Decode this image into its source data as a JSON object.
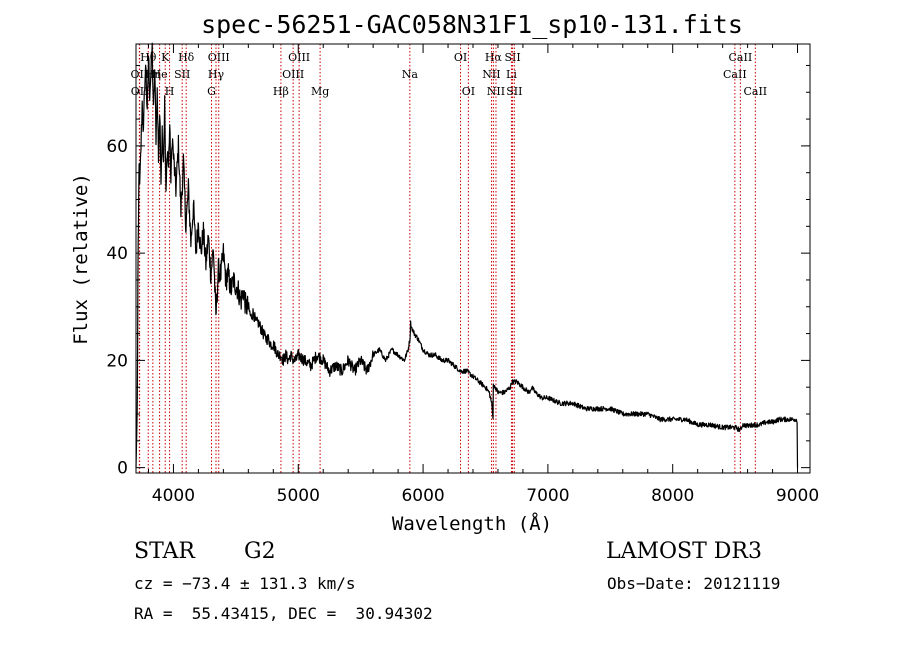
{
  "chart_data": {
    "type": "line",
    "title": "spec-56251-GAC058N31F1_sp10-131.fits",
    "xlabel": "Wavelength (Å)",
    "ylabel": "Flux (relative)",
    "xlim": [
      3700,
      9100
    ],
    "ylim": [
      -1,
      79
    ],
    "x_ticks": [
      4000,
      5000,
      6000,
      7000,
      8000,
      9000
    ],
    "y_ticks": [
      0,
      20,
      40,
      60
    ],
    "x_tick_labels": [
      "4000",
      "5000",
      "6000",
      "7000",
      "8000",
      "9000"
    ],
    "y_tick_labels": [
      "0",
      "20",
      "40",
      "60"
    ],
    "grid": false,
    "colors": {
      "spectrum": "#000000",
      "lines": "#cc0000"
    },
    "spectrum": {
      "wavelength": [
        3700,
        3710,
        3715,
        3720,
        3725,
        3730,
        3740,
        3750,
        3760,
        3770,
        3780,
        3790,
        3800,
        3810,
        3820,
        3830,
        3840,
        3850,
        3860,
        3870,
        3880,
        3890,
        3900,
        3910,
        3920,
        3930,
        3940,
        3950,
        3960,
        3970,
        3980,
        3990,
        4000,
        4020,
        4040,
        4060,
        4080,
        4100,
        4120,
        4140,
        4160,
        4180,
        4200,
        4220,
        4240,
        4260,
        4280,
        4300,
        4320,
        4340,
        4360,
        4380,
        4400,
        4420,
        4440,
        4460,
        4480,
        4500,
        4520,
        4540,
        4560,
        4580,
        4600,
        4620,
        4640,
        4660,
        4680,
        4700,
        4720,
        4740,
        4760,
        4780,
        4800,
        4820,
        4840,
        4860,
        4880,
        4900,
        4920,
        4940,
        4960,
        4980,
        5000,
        5050,
        5100,
        5150,
        5200,
        5250,
        5300,
        5350,
        5400,
        5450,
        5500,
        5550,
        5600,
        5650,
        5700,
        5750,
        5800,
        5850,
        5880,
        5895,
        5900,
        5910,
        5930,
        5960,
        6000,
        6050,
        6100,
        6150,
        6200,
        6250,
        6300,
        6350,
        6400,
        6450,
        6500,
        6530,
        6550,
        6560,
        6563,
        6570,
        6580,
        6600,
        6650,
        6700,
        6710,
        6750,
        6800,
        6850,
        6870,
        6900,
        6950,
        7000,
        7100,
        7200,
        7300,
        7400,
        7500,
        7600,
        7700,
        7800,
        7900,
        8000,
        8100,
        8200,
        8300,
        8400,
        8450,
        8500,
        8542,
        8560,
        8600,
        8650,
        8700,
        8750,
        8800,
        8850,
        8900,
        8950,
        8990,
        9000
      ],
      "flux": [
        0,
        10,
        35,
        45,
        58,
        52,
        60,
        68,
        62,
        72,
        75,
        65,
        77,
        70,
        74,
        78,
        66,
        74,
        62,
        70,
        58,
        66,
        55,
        63,
        58,
        68,
        50,
        60,
        56,
        64,
        53,
        62,
        58,
        52,
        60,
        48,
        57,
        45,
        52,
        42,
        49,
        40,
        46,
        40,
        44,
        38,
        43,
        36,
        41,
        28,
        37,
        36,
        40,
        35,
        36,
        33,
        35,
        34,
        33,
        31,
        33,
        30,
        30,
        28,
        29,
        27,
        27,
        26,
        25,
        24,
        24,
        23,
        23,
        22,
        21,
        21,
        20,
        21,
        20,
        21,
        20,
        20,
        21,
        20,
        19,
        21,
        20,
        18,
        19,
        18,
        20,
        18,
        20,
        18,
        21,
        22,
        20,
        22,
        21,
        20,
        22,
        24,
        27,
        26,
        25,
        24,
        22,
        21,
        21,
        20,
        20,
        19,
        18,
        18,
        17,
        16,
        15,
        14,
        12,
        9,
        16,
        15,
        15,
        14,
        14,
        15,
        16,
        16,
        15,
        14,
        15,
        14,
        13,
        13,
        12,
        12,
        11,
        11,
        11,
        10,
        10,
        10,
        9,
        9,
        9,
        8,
        8,
        7.5,
        7.5,
        7.5,
        7,
        8,
        7.8,
        8,
        8,
        8.5,
        8.5,
        9,
        9,
        9,
        9,
        8,
        0
      ]
    },
    "lines": [
      {
        "label": "Hθ",
        "wavelength": 3798,
        "row": 1
      },
      {
        "label": "OII",
        "wavelength": 3727,
        "row": 2
      },
      {
        "label": "OII",
        "wavelength": 3729,
        "row": 3
      },
      {
        "label": "Hη",
        "wavelength": 3835,
        "row": 2
      },
      {
        "label": "K",
        "wavelength": 3934,
        "row": 1
      },
      {
        "label": "He",
        "wavelength": 3889,
        "row": 2
      },
      {
        "label": "SII",
        "wavelength": 4070,
        "row": 2
      },
      {
        "label": "H",
        "wavelength": 3969,
        "row": 3
      },
      {
        "label": "Hδ",
        "wavelength": 4102,
        "row": 1
      },
      {
        "label": "OIII",
        "wavelength": 4363,
        "row": 1
      },
      {
        "label": "Hγ",
        "wavelength": 4341,
        "row": 2
      },
      {
        "label": "G",
        "wavelength": 4305,
        "row": 3
      },
      {
        "label": "Hβ",
        "wavelength": 4861,
        "row": 3
      },
      {
        "label": "OIII",
        "wavelength": 5007,
        "row": 1
      },
      {
        "label": "OIII",
        "wavelength": 4959,
        "row": 2
      },
      {
        "label": "Mg",
        "wavelength": 5175,
        "row": 3
      },
      {
        "label": "Na",
        "wavelength": 5894,
        "row": 2
      },
      {
        "label": "OI",
        "wavelength": 6300,
        "row": 1
      },
      {
        "label": "OI",
        "wavelength": 6363,
        "row": 3
      },
      {
        "label": "Hα",
        "wavelength": 6563,
        "row": 1
      },
      {
        "label": "NII",
        "wavelength": 6548,
        "row": 2
      },
      {
        "label": "NII",
        "wavelength": 6584,
        "row": 3
      },
      {
        "label": "SII",
        "wavelength": 6717,
        "row": 1
      },
      {
        "label": "Li",
        "wavelength": 6708,
        "row": 2
      },
      {
        "label": "SII",
        "wavelength": 6731,
        "row": 3
      },
      {
        "label": "CaII",
        "wavelength": 8542,
        "row": 1
      },
      {
        "label": "CaII",
        "wavelength": 8498,
        "row": 2
      },
      {
        "label": "CaII",
        "wavelength": 8662,
        "row": 3
      }
    ]
  },
  "info": {
    "object_class": "STAR",
    "subclass": "G2",
    "survey": "LAMOST DR3",
    "cz": "cz = −73.4 ± 131.3 km/s",
    "obs_date": "Obs−Date: 20121119",
    "coords": "RA =  55.43415, DEC =  30.94302"
  }
}
